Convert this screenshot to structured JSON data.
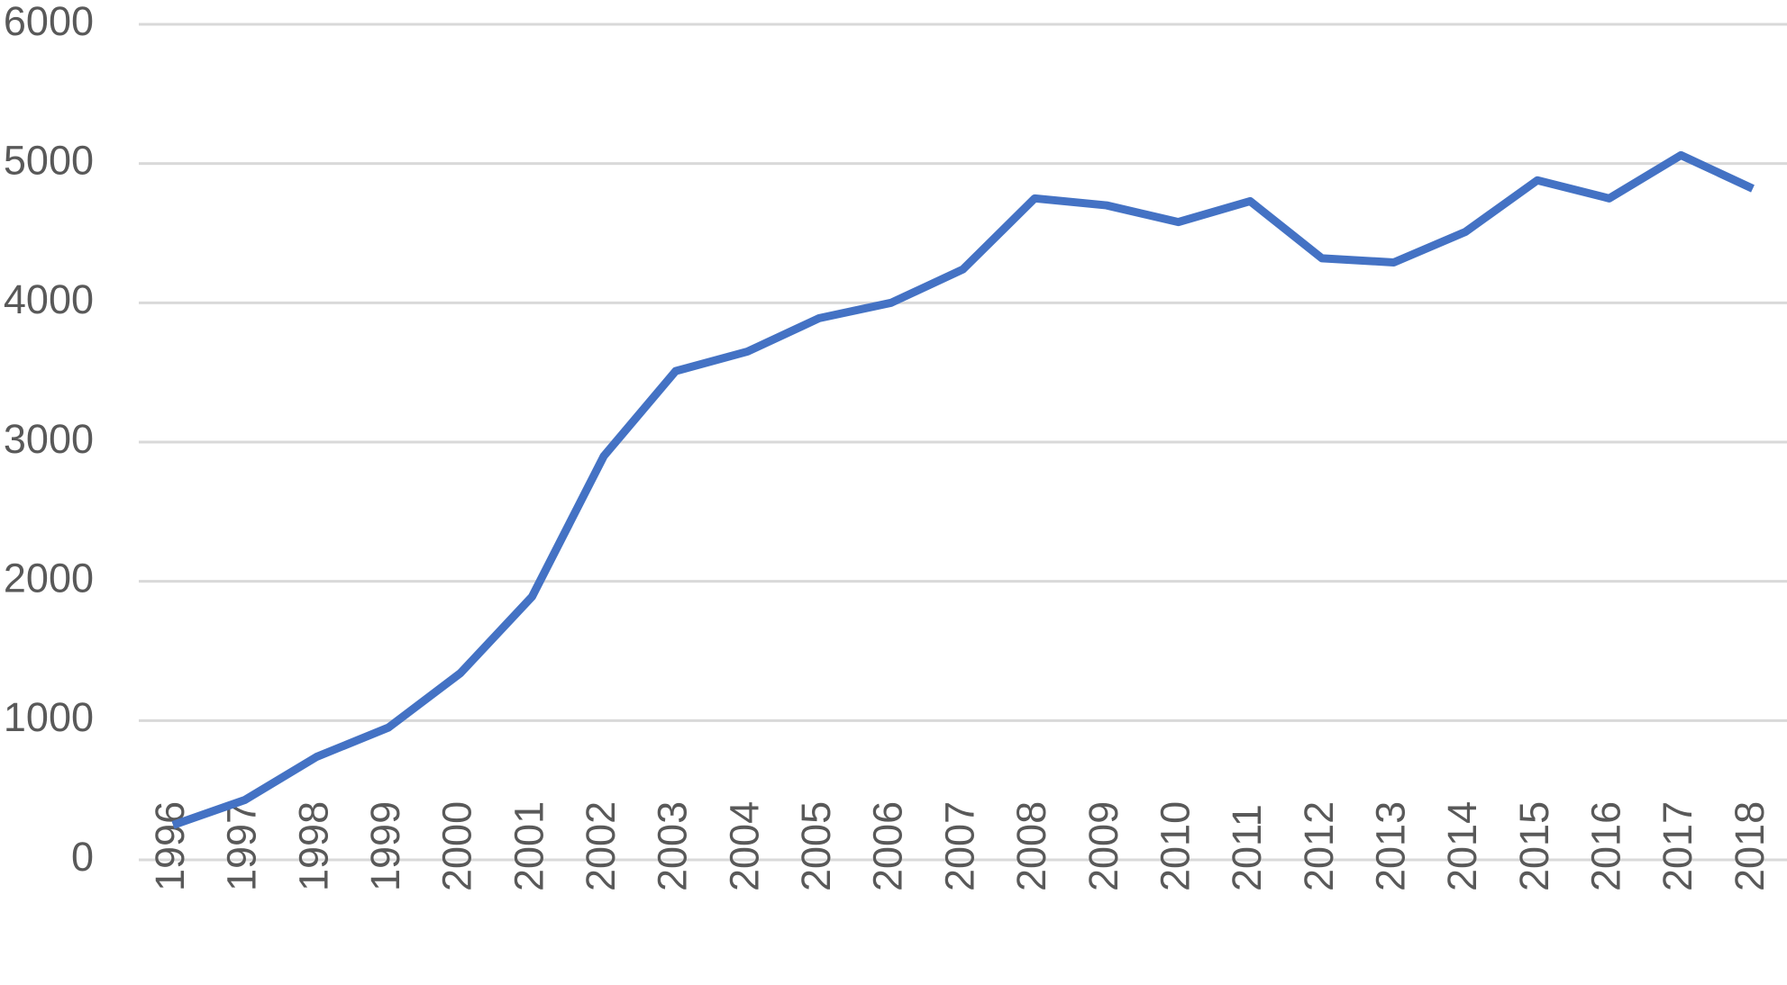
{
  "chart_data": {
    "type": "line",
    "categories": [
      "1996",
      "1997",
      "1998",
      "1999",
      "2000",
      "2001",
      "2002",
      "2003",
      "2004",
      "2005",
      "2006",
      "2007",
      "2008",
      "2009",
      "2010",
      "2011",
      "2012",
      "2013",
      "2014",
      "2015",
      "2016",
      "2017",
      "2018"
    ],
    "series": [
      {
        "color": "#4472c4",
        "values": [
          250,
          430,
          740,
          950,
          1340,
          1890,
          2900,
          3510,
          3650,
          3890,
          4000,
          4240,
          4750,
          4700,
          4580,
          4730,
          4320,
          4290,
          4510,
          4880,
          4750,
          5060,
          4820
        ]
      }
    ],
    "ylim": [
      0,
      6000
    ],
    "yticks": [
      0,
      1000,
      2000,
      3000,
      4000,
      5000,
      6000
    ],
    "grid": true
  }
}
